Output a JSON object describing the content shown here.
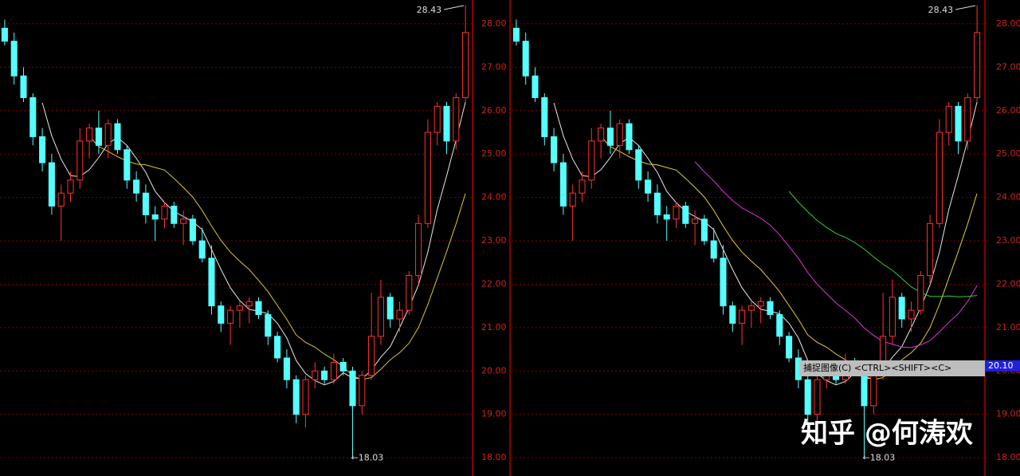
{
  "chart_data": [
    {
      "type": "candlestick",
      "up_color": "#ff3232",
      "down_color": "#54ffff",
      "grid": true,
      "ylim": [
        17.58,
        28.55
      ],
      "yticks": [
        {
          "value": 18,
          "label": "18.00"
        },
        {
          "value": 19,
          "label": "19.00"
        },
        {
          "value": 20,
          "label": "20.00"
        },
        {
          "value": 21,
          "label": "21.00"
        },
        {
          "value": 22,
          "label": "22.00"
        },
        {
          "value": 23,
          "label": "23.00"
        },
        {
          "value": 24,
          "label": "24.00"
        },
        {
          "value": 25,
          "label": "25.00"
        },
        {
          "value": 26,
          "label": "26.00"
        },
        {
          "value": 27,
          "label": "27.00"
        },
        {
          "value": 28,
          "label": "28.00"
        }
      ],
      "max_label": 28.43,
      "min_label": {
        "value": 18.03,
        "label": "←18.03"
      },
      "open": [
        27.9,
        27.6,
        26.8,
        26.3,
        25.4,
        24.8,
        23.8,
        24.1,
        24.4,
        25.3,
        25.6,
        25.2,
        25.7,
        25.1,
        24.4,
        24.1,
        23.6,
        23.5,
        23.8,
        23.4,
        23.5,
        23.0,
        22.6,
        21.5,
        21.1,
        21.4,
        21.5,
        21.6,
        21.3,
        20.8,
        20.3,
        19.8,
        19.0,
        19.8,
        20.0,
        19.8,
        20.2,
        20.0,
        19.2,
        19.9,
        20.8,
        21.7,
        21.2,
        21.4,
        22.2,
        23.4,
        25.5,
        26.1,
        25.3,
        26.3
      ],
      "high": [
        28.1,
        27.8,
        27.0,
        26.4,
        25.6,
        25.0,
        24.3,
        24.6,
        25.6,
        25.7,
        26.0,
        25.8,
        25.8,
        25.2,
        24.6,
        24.3,
        23.8,
        23.9,
        23.9,
        23.7,
        23.6,
        23.3,
        22.9,
        21.6,
        21.5,
        21.6,
        21.7,
        21.7,
        21.4,
        20.9,
        20.5,
        19.9,
        19.9,
        20.2,
        20.1,
        20.4,
        20.3,
        20.1,
        20.0,
        21.8,
        22.1,
        21.8,
        21.6,
        22.3,
        23.6,
        25.8,
        26.2,
        26.2,
        26.4,
        28.43
      ],
      "low": [
        27.5,
        26.6,
        26.2,
        25.2,
        24.6,
        23.6,
        23.0,
        23.9,
        24.2,
        24.9,
        25.0,
        24.9,
        25.0,
        24.2,
        23.9,
        23.4,
        23.0,
        23.3,
        23.3,
        22.9,
        22.9,
        22.5,
        21.3,
        20.9,
        20.6,
        21.0,
        21.1,
        21.2,
        20.6,
        20.2,
        19.6,
        18.8,
        18.7,
        19.6,
        19.7,
        19.7,
        19.9,
        18.03,
        19.0,
        19.8,
        20.6,
        21.0,
        20.9,
        21.3,
        22.0,
        23.3,
        25.2,
        25.0,
        25.1,
        26.2
      ],
      "close": [
        27.6,
        26.8,
        26.3,
        25.4,
        24.8,
        23.8,
        24.1,
        24.4,
        25.3,
        25.6,
        25.2,
        25.7,
        25.1,
        24.4,
        24.1,
        23.6,
        23.5,
        23.8,
        23.4,
        23.5,
        23.0,
        22.6,
        21.5,
        21.1,
        21.4,
        21.5,
        21.6,
        21.3,
        20.8,
        20.3,
        19.8,
        19.0,
        19.8,
        20.0,
        19.8,
        20.2,
        20.0,
        19.2,
        19.9,
        20.8,
        21.7,
        21.2,
        21.4,
        22.2,
        23.4,
        25.5,
        26.1,
        25.3,
        26.3,
        27.8
      ],
      "series": [
        {
          "color": "#e8e8e8",
          "values": [
            null,
            null,
            null,
            null,
            26.18,
            25.42,
            24.88,
            24.5,
            24.48,
            24.64,
            24.92,
            25.24,
            25.38,
            25.2,
            24.9,
            24.58,
            24.14,
            23.88,
            23.68,
            23.56,
            23.44,
            23.26,
            22.8,
            22.34,
            21.92,
            21.62,
            21.42,
            21.38,
            21.32,
            21.1,
            20.76,
            20.24,
            19.94,
            19.78,
            19.68,
            19.76,
            19.96,
            19.84,
            19.82,
            20.02,
            20.32,
            20.56,
            21.0,
            21.46,
            21.98,
            22.74,
            23.72,
            24.5,
            25.32,
            26.2
          ]
        },
        {
          "color": "#d8c830",
          "values": [
            null,
            null,
            null,
            null,
            null,
            null,
            null,
            null,
            null,
            25.41,
            25.17,
            25.06,
            24.94,
            24.84,
            24.77,
            24.75,
            24.69,
            24.63,
            24.44,
            24.23,
            24.01,
            23.7,
            23.34,
            23.01,
            22.74,
            22.53,
            22.34,
            22.09,
            21.83,
            21.51,
            21.19,
            20.83,
            20.66,
            20.55,
            20.39,
            20.26,
            20.1,
            19.89,
            19.8,
            19.85,
            20.04,
            20.26,
            20.42,
            20.64,
            21.0,
            21.53,
            22.14,
            22.75,
            23.39,
            24.09
          ]
        }
      ]
    },
    {
      "type": "candlestick",
      "up_color": "#ff3232",
      "down_color": "#54ffff",
      "grid": true,
      "ylim": [
        17.58,
        28.55
      ],
      "yticks": [
        {
          "value": 18,
          "label": "18.00"
        },
        {
          "value": 19,
          "label": "19.00"
        },
        {
          "value": 20,
          "label": "20.00"
        },
        {
          "value": 21,
          "label": "21.00"
        },
        {
          "value": 22,
          "label": "22.00"
        },
        {
          "value": 23,
          "label": "23.00"
        },
        {
          "value": 24,
          "label": "24.00"
        },
        {
          "value": 25,
          "label": "25.00"
        },
        {
          "value": 26,
          "label": "26.00"
        },
        {
          "value": 27,
          "label": "27.00"
        },
        {
          "value": 28,
          "label": "28.00"
        }
      ],
      "max_label": 28.43,
      "min_label": {
        "value": 18.03,
        "label": "←18.03"
      },
      "crosshair_value": {
        "value": 20.1,
        "label": "20.10"
      },
      "open": [
        27.9,
        27.6,
        26.8,
        26.3,
        25.4,
        24.8,
        23.8,
        24.1,
        24.4,
        25.3,
        25.6,
        25.2,
        25.7,
        25.1,
        24.4,
        24.1,
        23.6,
        23.5,
        23.8,
        23.4,
        23.5,
        23.0,
        22.6,
        21.5,
        21.1,
        21.4,
        21.5,
        21.6,
        21.3,
        20.8,
        20.3,
        19.8,
        19.0,
        19.8,
        20.0,
        19.8,
        20.2,
        20.0,
        19.2,
        19.9,
        20.8,
        21.7,
        21.2,
        21.4,
        22.2,
        23.4,
        25.5,
        26.1,
        25.3,
        26.3
      ],
      "high": [
        28.1,
        27.8,
        27.0,
        26.4,
        25.6,
        25.0,
        24.3,
        24.6,
        25.6,
        25.7,
        26.0,
        25.8,
        25.8,
        25.2,
        24.6,
        24.3,
        23.8,
        23.9,
        23.9,
        23.7,
        23.6,
        23.3,
        22.9,
        21.6,
        21.5,
        21.6,
        21.7,
        21.7,
        21.4,
        20.9,
        20.5,
        19.9,
        19.9,
        20.2,
        20.1,
        20.4,
        20.3,
        20.1,
        20.0,
        21.8,
        22.1,
        21.8,
        21.6,
        22.3,
        23.6,
        25.8,
        26.2,
        26.2,
        26.4,
        28.43
      ],
      "low": [
        27.5,
        26.6,
        26.2,
        25.2,
        24.6,
        23.6,
        23.0,
        23.9,
        24.2,
        24.9,
        25.0,
        24.9,
        25.0,
        24.2,
        23.9,
        23.4,
        23.0,
        23.3,
        23.3,
        22.9,
        22.9,
        22.5,
        21.3,
        20.9,
        20.6,
        21.0,
        21.1,
        21.2,
        20.6,
        20.2,
        19.6,
        18.8,
        18.7,
        19.6,
        19.7,
        19.7,
        19.9,
        18.03,
        19.0,
        19.8,
        20.6,
        21.0,
        20.9,
        21.3,
        22.0,
        23.3,
        25.2,
        25.0,
        25.1,
        26.2
      ],
      "close": [
        27.6,
        26.8,
        26.3,
        25.4,
        24.8,
        23.8,
        24.1,
        24.4,
        25.3,
        25.6,
        25.2,
        25.7,
        25.1,
        24.4,
        24.1,
        23.6,
        23.5,
        23.8,
        23.4,
        23.5,
        23.0,
        22.6,
        21.5,
        21.1,
        21.4,
        21.5,
        21.6,
        21.3,
        20.8,
        20.3,
        19.8,
        19.0,
        19.8,
        20.0,
        19.8,
        20.2,
        20.0,
        19.2,
        19.9,
        20.8,
        21.7,
        21.2,
        21.4,
        22.2,
        23.4,
        25.5,
        26.1,
        25.3,
        26.3,
        27.8
      ],
      "series": [
        {
          "color": "#e8e8e8",
          "values": [
            null,
            null,
            null,
            null,
            26.18,
            25.42,
            24.88,
            24.5,
            24.48,
            24.64,
            24.92,
            25.24,
            25.38,
            25.2,
            24.9,
            24.58,
            24.14,
            23.88,
            23.68,
            23.56,
            23.44,
            23.26,
            22.8,
            22.34,
            21.92,
            21.62,
            21.42,
            21.38,
            21.32,
            21.1,
            20.76,
            20.24,
            19.94,
            19.78,
            19.68,
            19.76,
            19.96,
            19.84,
            19.82,
            20.02,
            20.32,
            20.56,
            21.0,
            21.46,
            21.98,
            22.74,
            23.72,
            24.5,
            25.32,
            26.2
          ]
        },
        {
          "color": "#e0d030",
          "values": [
            null,
            null,
            null,
            null,
            null,
            null,
            null,
            null,
            null,
            25.41,
            25.17,
            25.06,
            24.94,
            24.84,
            24.77,
            24.75,
            24.69,
            24.63,
            24.44,
            24.23,
            24.01,
            23.7,
            23.34,
            23.01,
            22.74,
            22.53,
            22.34,
            22.09,
            21.83,
            21.51,
            21.19,
            20.83,
            20.66,
            20.55,
            20.39,
            20.26,
            20.1,
            19.89,
            19.8,
            19.85,
            20.04,
            20.26,
            20.42,
            20.64,
            21.0,
            21.53,
            22.14,
            22.75,
            23.39,
            24.09
          ]
        },
        {
          "color": "#e030e0",
          "values": [
            null,
            null,
            null,
            null,
            null,
            null,
            null,
            null,
            null,
            null,
            null,
            null,
            null,
            null,
            null,
            null,
            null,
            null,
            null,
            24.82,
            24.59,
            24.38,
            24.14,
            23.93,
            23.76,
            23.64,
            23.52,
            23.36,
            23.14,
            22.87,
            22.6,
            22.27,
            22.0,
            21.78,
            21.57,
            21.4,
            21.22,
            20.99,
            20.82,
            20.68,
            20.62,
            20.55,
            20.54,
            20.6,
            20.7,
            20.9,
            21.12,
            21.32,
            21.6,
            21.97
          ]
        },
        {
          "color": "#30d030",
          "values": [
            null,
            null,
            null,
            null,
            null,
            null,
            null,
            null,
            null,
            null,
            null,
            null,
            null,
            null,
            null,
            null,
            null,
            null,
            null,
            null,
            null,
            null,
            null,
            null,
            null,
            null,
            null,
            null,
            null,
            24.14,
            23.89,
            23.67,
            23.47,
            23.31,
            23.17,
            23.08,
            22.96,
            22.81,
            22.63,
            22.46,
            22.32,
            22.13,
            21.94,
            21.81,
            21.72,
            21.72,
            21.73,
            21.71,
            21.72,
            21.74
          ]
        }
      ]
    }
  ],
  "tooltip": "捕捉图像(C) <CTRL><SHIFT><C>",
  "watermark": "知乎 @何涛欢"
}
